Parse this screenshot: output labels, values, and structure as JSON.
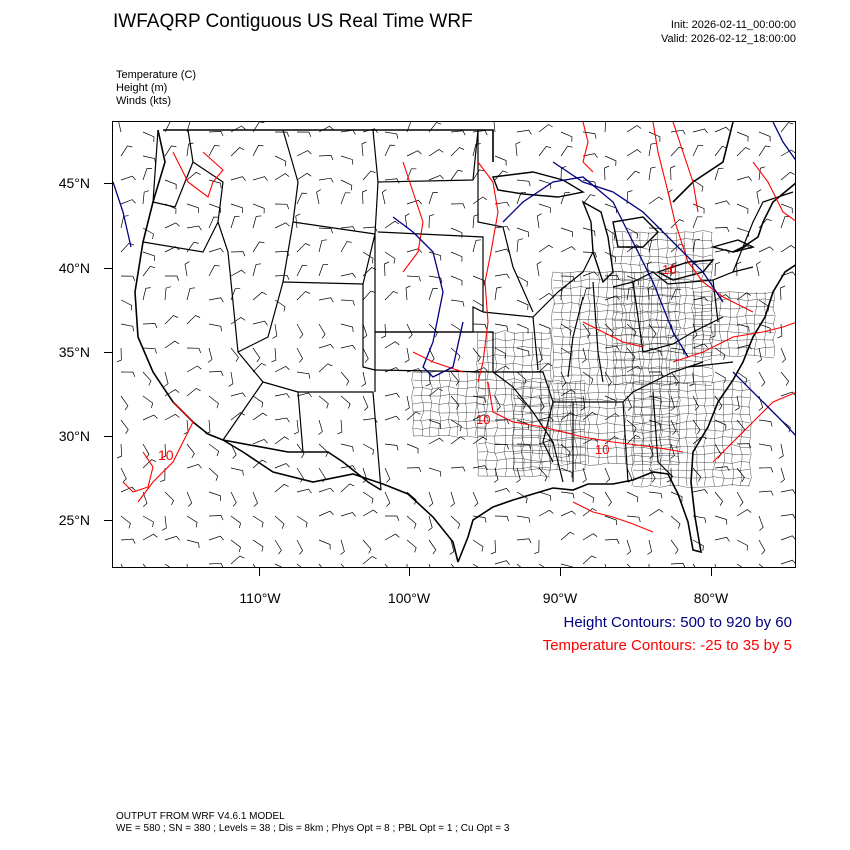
{
  "title": "IWFAQRP Contiguous US Real Time WRF",
  "init": "Init: 2026-02-11_00:00:00",
  "valid": "Valid: 2026-02-12_18:00:00",
  "fields": [
    "Temperature   (C)",
    "Height   (m)",
    "Winds   (kts)"
  ],
  "lat_labels": [
    "45°N",
    "40°N",
    "35°N",
    "30°N",
    "25°N"
  ],
  "lon_labels": [
    "110°W",
    "100°W",
    "90°W",
    "80°W"
  ],
  "contour_labels": [
    "10",
    "10",
    "10",
    "10"
  ],
  "legend": {
    "height": "Height Contours: 500 to 920 by 60",
    "temperature": "Temperature Contours: -25 to 35 by 5"
  },
  "colors": {
    "height": "#000080",
    "temperature": "#ff0000",
    "map": "#000000"
  },
  "footer": {
    "line1": "OUTPUT FROM WRF V4.6.1 MODEL",
    "line2": "WE = 580 ; SN = 380 ; Levels = 38 ; Dis = 8km ; Phys Opt = 8 ; PBL Opt = 1 ; Cu Opt = 3"
  }
}
